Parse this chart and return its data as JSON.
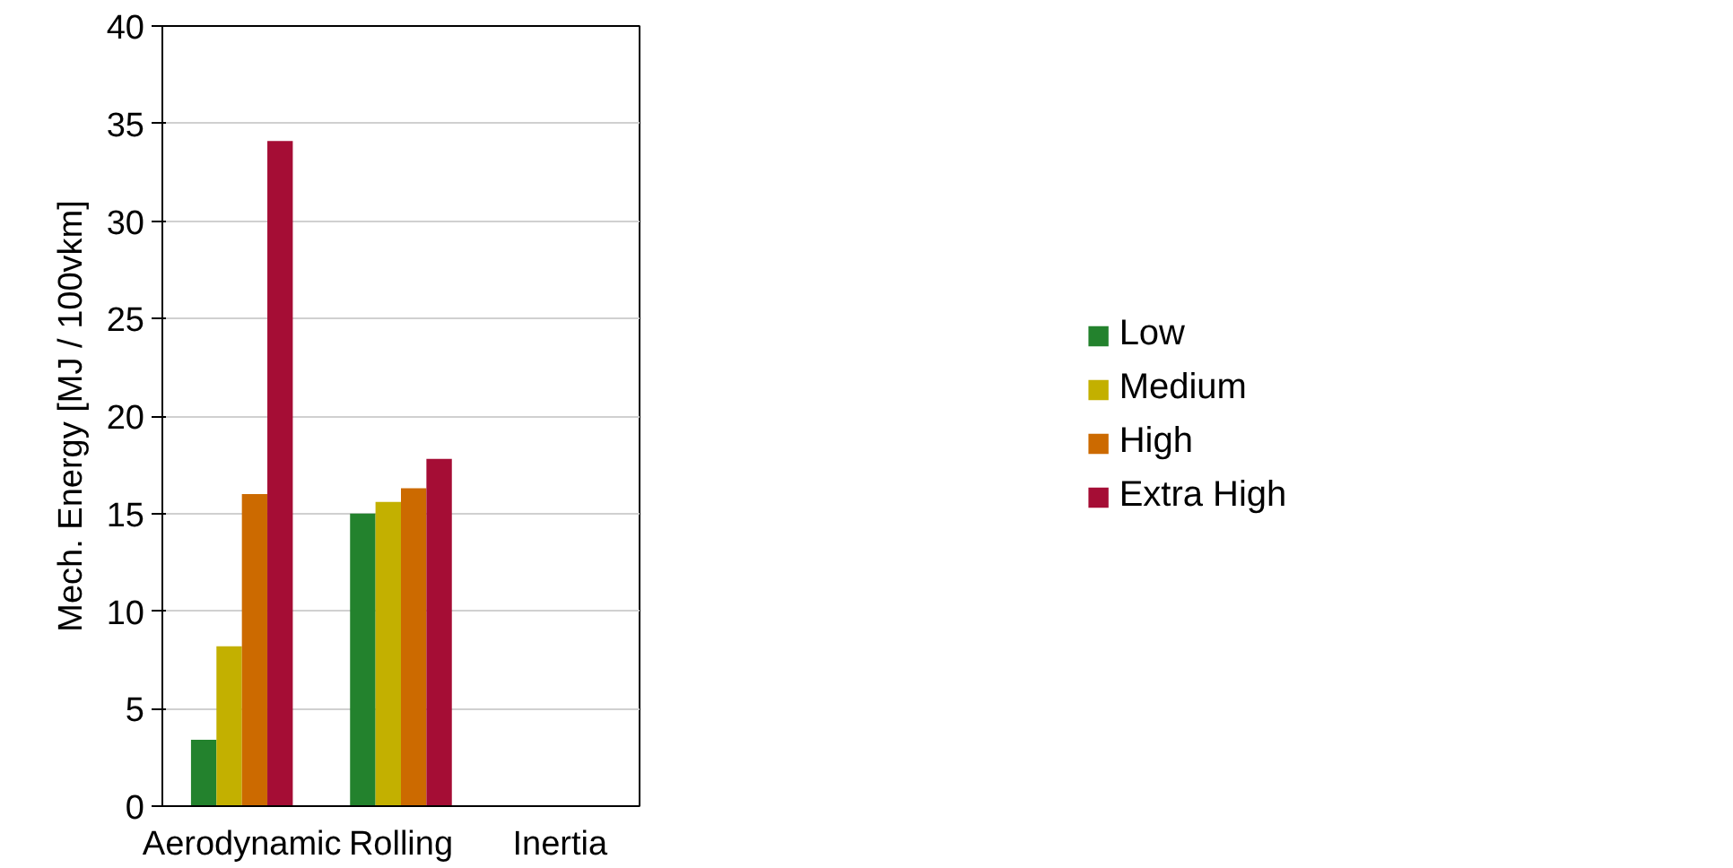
{
  "chart_data": {
    "type": "bar",
    "ylabel": "Mech. Energy [MJ / 100vkm]",
    "categories": [
      "Aerodynamic",
      "Rolling",
      "Inertia"
    ],
    "series": [
      {
        "name": "Low",
        "color": "#23822d",
        "values": [
          3.4,
          15.0,
          0
        ]
      },
      {
        "name": "Medium",
        "color": "#c3b000",
        "values": [
          8.2,
          15.6,
          0
        ]
      },
      {
        "name": "High",
        "color": "#cc6a00",
        "values": [
          16.0,
          16.3,
          0
        ]
      },
      {
        "name": "Extra High",
        "color": "#a50d35",
        "values": [
          34.1,
          17.8,
          0
        ]
      }
    ],
    "ylim": [
      0,
      40
    ],
    "yticks": [
      0,
      5,
      10,
      15,
      20,
      25,
      30,
      35,
      40
    ],
    "grid": "y",
    "legend": "right"
  }
}
